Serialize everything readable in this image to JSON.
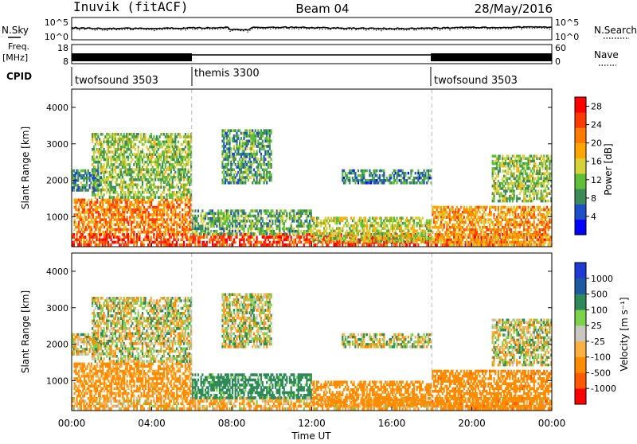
{
  "header": {
    "station": "Inuvik (fitACF)",
    "beam": "Beam 04",
    "date": "28/May/2016"
  },
  "top_panels": {
    "nsky_label": "N.Sky",
    "nsky_ticks": [
      "10^5",
      "10^0"
    ],
    "nsearch_label": "N.Search",
    "nsearch_ticks": [
      "10^5",
      "10^0"
    ],
    "freq_label": "Freq.",
    "freq_unit": "[MHz]",
    "freq_ticks": [
      "18",
      "8"
    ],
    "nave_label": "Nave",
    "nave_ticks": [
      "60",
      "0"
    ],
    "cpid_label": "CPID",
    "cpid_segments": [
      {
        "label": "twofsound 3503",
        "start": 0,
        "end": 6
      },
      {
        "label": "themis 3300",
        "start": 6,
        "end": 18
      },
      {
        "label": "twofsound 3503",
        "start": 18,
        "end": 24
      }
    ]
  },
  "colors": {
    "power_scale": [
      "#0000ff",
      "#1f4fc8",
      "#3c8c5a",
      "#5fbf3a",
      "#d8d23a",
      "#ffa500",
      "#ff7a00",
      "#ff3a00",
      "#ff0000"
    ],
    "velocity_scale": [
      "#ff0000",
      "#ff5a00",
      "#ff8c00",
      "#ffb040",
      "#c8c8c0",
      "#7cd24a",
      "#2e8b57",
      "#1e5aa0",
      "#1e3cd2"
    ]
  },
  "chart_data": {
    "type": "heatmap",
    "xlabel": "Time UT",
    "x_ticks": [
      "00:00",
      "04:00",
      "08:00",
      "12:00",
      "16:00",
      "20:00",
      "00:00"
    ],
    "x_range_hours": [
      0,
      24
    ],
    "panels": [
      {
        "name": "power",
        "ylabel": "Slant Range [km]",
        "y_ticks": [
          "1000",
          "2000",
          "3000",
          "4000"
        ],
        "ylim": [
          180,
          4500
        ],
        "colorbar_label": "Power [dB]",
        "colorbar_ticks": [
          "4",
          "8",
          "12",
          "16",
          "20",
          "24",
          "28"
        ],
        "colorbar_range": [
          0,
          30
        ]
      },
      {
        "name": "velocity",
        "ylabel": "Slant Range [km]",
        "y_ticks": [
          "1000",
          "2000",
          "3000",
          "4000"
        ],
        "ylim": [
          180,
          4500
        ],
        "colorbar_label": "Velocity [m s⁻¹]",
        "colorbar_ticks": [
          "1000",
          "500",
          "100",
          "25",
          "-25",
          "-100",
          "-500",
          "-1000"
        ]
      }
    ],
    "echo_regions": [
      {
        "t0": 0.0,
        "t1": 24.0,
        "r0": 200,
        "r1": 550,
        "power": 26,
        "velocity": -80
      },
      {
        "t0": 0.1,
        "t1": 6.0,
        "r0": 550,
        "r1": 1500,
        "power": 22,
        "velocity": -120
      },
      {
        "t0": 1.0,
        "t1": 6.0,
        "r0": 1500,
        "r1": 3300,
        "power": 12,
        "velocity": 0
      },
      {
        "t0": 0.0,
        "t1": 1.5,
        "r0": 1700,
        "r1": 2300,
        "power": 8,
        "velocity": 0
      },
      {
        "t0": 6.0,
        "t1": 12.0,
        "r0": 500,
        "r1": 1200,
        "power": 10,
        "velocity": 150
      },
      {
        "t0": 7.5,
        "t1": 10.0,
        "r0": 1900,
        "r1": 3400,
        "power": 9,
        "velocity": 0
      },
      {
        "t0": 12.0,
        "t1": 18.0,
        "r0": 300,
        "r1": 1000,
        "power": 14,
        "velocity": -150
      },
      {
        "t0": 13.5,
        "t1": 18.0,
        "r0": 1900,
        "r1": 2300,
        "power": 7,
        "velocity": 0
      },
      {
        "t0": 18.0,
        "t1": 24.0,
        "r0": 200,
        "r1": 1300,
        "power": 20,
        "velocity": -200
      },
      {
        "t0": 21.0,
        "t1": 24.0,
        "r0": 1400,
        "r1": 2700,
        "power": 12,
        "velocity": 0
      }
    ]
  }
}
